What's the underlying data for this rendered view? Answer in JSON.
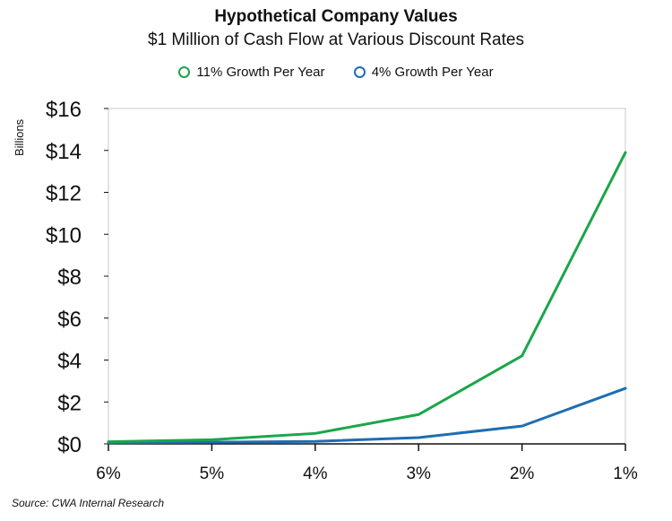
{
  "chart_data": {
    "type": "line",
    "title": "Hypothetical Company Values",
    "subtitle": "$1 Million of Cash Flow at Various Discount Rates",
    "ylabel": "Billions",
    "categories": [
      "6%",
      "5%",
      "4%",
      "3%",
      "2%",
      "1%"
    ],
    "ylim": [
      0,
      16
    ],
    "yticks": [
      0,
      2,
      4,
      6,
      8,
      10,
      12,
      14,
      16
    ],
    "ytick_labels": [
      "$0",
      "$2",
      "$4",
      "$6",
      "$8",
      "$10",
      "$12",
      "$14",
      "$16"
    ],
    "grid": false,
    "legend_position": "top-center",
    "series": [
      {
        "name": "11% Growth Per Year",
        "color": "#1aa64a",
        "values": [
          0.1,
          0.2,
          0.5,
          1.4,
          4.2,
          13.9
        ]
      },
      {
        "name": "4% Growth Per Year",
        "color": "#1f6db3",
        "values": [
          0.05,
          0.08,
          0.12,
          0.3,
          0.85,
          2.65
        ]
      }
    ],
    "source": "Source: CWA Internal Research"
  }
}
